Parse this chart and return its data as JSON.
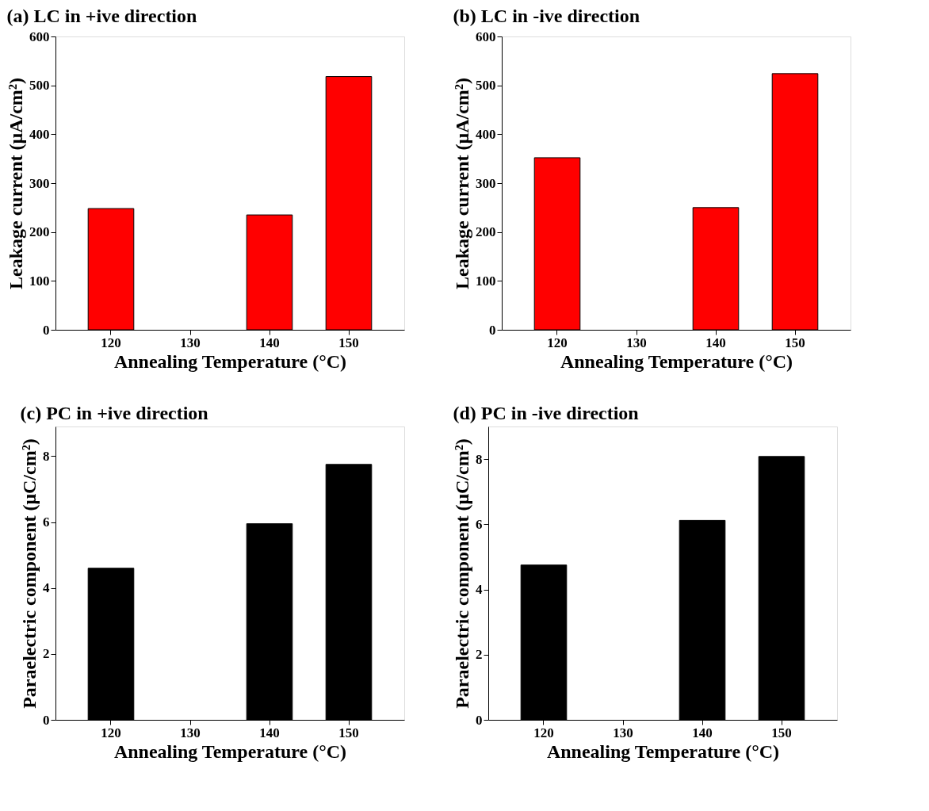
{
  "chart_data": [
    {
      "type": "bar",
      "title": "(a) LC in +ive direction",
      "xlabel": "Annealing Temperature (°C)",
      "ylabel": "Leakage current (μA/cm²)",
      "categories": [
        "120",
        "130",
        "140",
        "150"
      ],
      "values": [
        248,
        null,
        235,
        518
      ],
      "color": "#ff0000",
      "ylim": [
        0,
        600
      ],
      "yticks": [
        0,
        100,
        200,
        300,
        400,
        500,
        600
      ]
    },
    {
      "type": "bar",
      "title": "(b) LC in -ive direction",
      "xlabel": "Annealing Temperature (°C)",
      "ylabel": "Leakage current (μA/cm²)",
      "categories": [
        "120",
        "130",
        "140",
        "150"
      ],
      "values": [
        352,
        null,
        250,
        524
      ],
      "color": "#ff0000",
      "ylim": [
        0,
        600
      ],
      "yticks": [
        0,
        100,
        200,
        300,
        400,
        500,
        600
      ]
    },
    {
      "type": "bar",
      "title": "(c) PC in +ive direction",
      "xlabel": "Annealing Temperature (°C)",
      "ylabel": "Paraelectric component (μC/cm²)",
      "categories": [
        "120",
        "130",
        "140",
        "150"
      ],
      "values": [
        4.6,
        null,
        5.95,
        7.75
      ],
      "color": "#000000",
      "ylim": [
        0,
        8.9
      ],
      "yticks": [
        0,
        2,
        4,
        6,
        8
      ]
    },
    {
      "type": "bar",
      "title": "(d) PC in -ive direction",
      "xlabel": "Annealing Temperature (°C)",
      "ylabel": "Paraelectric component (μC/cm²)",
      "categories": [
        "120",
        "130",
        "140",
        "150"
      ],
      "values": [
        4.75,
        null,
        6.12,
        8.08
      ],
      "color": "#000000",
      "ylim": [
        0,
        9
      ],
      "yticks": [
        0,
        2,
        4,
        6,
        8
      ]
    }
  ]
}
